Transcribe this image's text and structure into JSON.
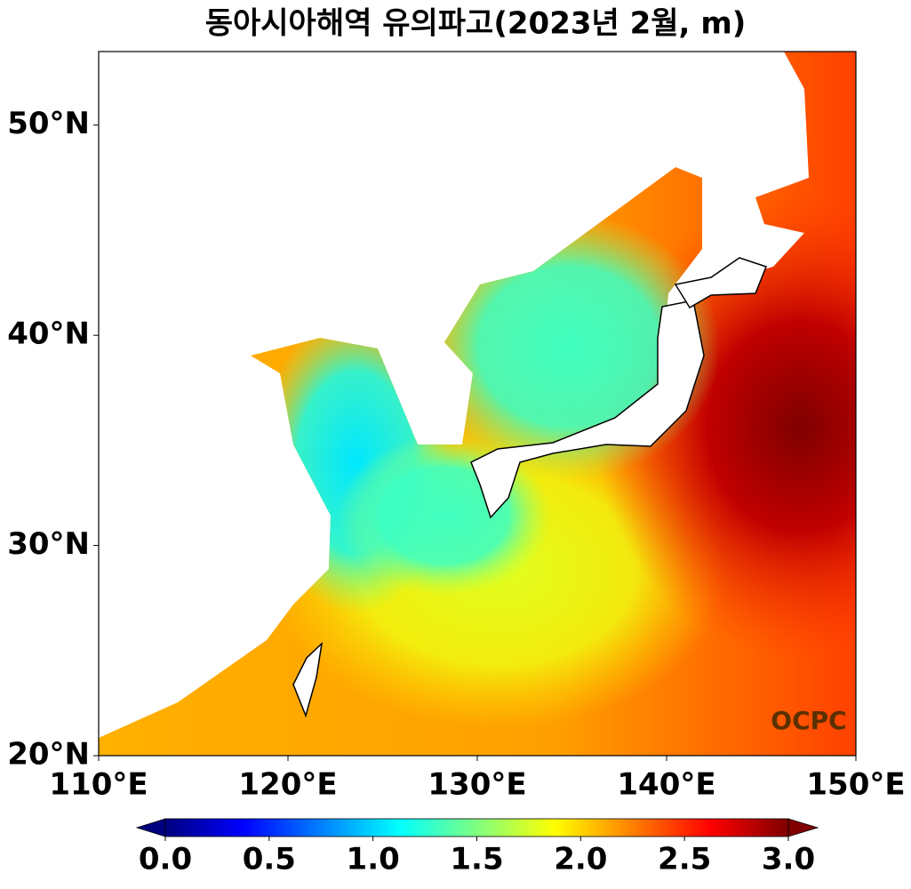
{
  "chart_data": {
    "type": "map",
    "title": "동아시아해역 유의파고(2023년 2월, m)",
    "xlim": [
      110,
      150
    ],
    "ylim": [
      20,
      53.5
    ],
    "xticks": [
      {
        "value": 110,
        "label": "110°E"
      },
      {
        "value": 120,
        "label": "120°E"
      },
      {
        "value": 130,
        "label": "130°E"
      },
      {
        "value": 140,
        "label": "140°E"
      },
      {
        "value": 150,
        "label": "150°E"
      }
    ],
    "yticks": [
      {
        "value": 20,
        "label": "20°N"
      },
      {
        "value": 30,
        "label": "30°N"
      },
      {
        "value": 40,
        "label": "40°N"
      },
      {
        "value": 50,
        "label": "50°N"
      }
    ],
    "colormap": "jet",
    "colorbar": {
      "lim": [
        0,
        3
      ],
      "ticks": [
        {
          "value": 0,
          "label": "0.0"
        },
        {
          "value": 0.5,
          "label": "0.5"
        },
        {
          "value": 1,
          "label": "1.0"
        },
        {
          "value": 1.5,
          "label": "1.5"
        },
        {
          "value": 2,
          "label": "2.0"
        },
        {
          "value": 2.5,
          "label": "2.5"
        },
        {
          "value": 3,
          "label": "3.0"
        }
      ]
    },
    "watermark": "OCPC"
  }
}
